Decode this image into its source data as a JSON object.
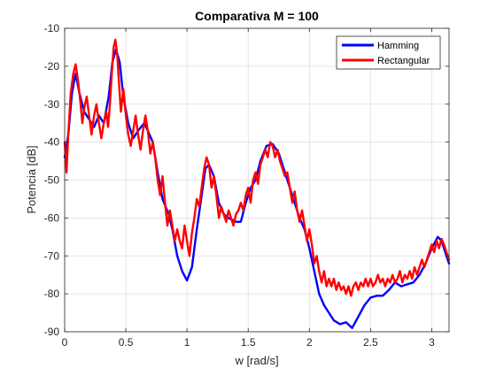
{
  "chart_data": {
    "type": "line",
    "title": "Comparativa M = 100",
    "xlabel": "w [rad/s]",
    "ylabel": "Potencia [dB]",
    "xlim": [
      0,
      3.1416
    ],
    "ylim": [
      -90,
      -10
    ],
    "xticks": [
      0,
      0.5,
      1,
      1.5,
      2,
      2.5,
      3
    ],
    "xtick_labels": [
      "0",
      "0.5",
      "1",
      "1.5",
      "2",
      "2.5",
      "3"
    ],
    "yticks": [
      -90,
      -80,
      -70,
      -60,
      -50,
      -40,
      -30,
      -20,
      -10
    ],
    "ytick_labels": [
      "-90",
      "-80",
      "-70",
      "-60",
      "-50",
      "-40",
      "-30",
      "-20",
      "-10"
    ],
    "grid": true,
    "legend": {
      "placement": "top-right"
    },
    "series": [
      {
        "name": "Hamming",
        "color": "#0000ff",
        "points": [
          [
            0,
            -44
          ],
          [
            0.03,
            -38
          ],
          [
            0.06,
            -27
          ],
          [
            0.09,
            -22
          ],
          [
            0.12,
            -27
          ],
          [
            0.16,
            -32
          ],
          [
            0.2,
            -34
          ],
          [
            0.24,
            -36
          ],
          [
            0.28,
            -33
          ],
          [
            0.32,
            -35
          ],
          [
            0.36,
            -28
          ],
          [
            0.39,
            -19
          ],
          [
            0.42,
            -15.5
          ],
          [
            0.45,
            -19
          ],
          [
            0.48,
            -28
          ],
          [
            0.52,
            -35
          ],
          [
            0.56,
            -39
          ],
          [
            0.6,
            -37
          ],
          [
            0.65,
            -35
          ],
          [
            0.68,
            -37
          ],
          [
            0.72,
            -40
          ],
          [
            0.76,
            -48
          ],
          [
            0.8,
            -55
          ],
          [
            0.85,
            -59
          ],
          [
            0.88,
            -63
          ],
          [
            0.92,
            -70
          ],
          [
            0.96,
            -74
          ],
          [
            1.0,
            -76.5
          ],
          [
            1.04,
            -73
          ],
          [
            1.08,
            -63
          ],
          [
            1.12,
            -54
          ],
          [
            1.15,
            -47
          ],
          [
            1.18,
            -46
          ],
          [
            1.22,
            -49
          ],
          [
            1.26,
            -56
          ],
          [
            1.3,
            -59
          ],
          [
            1.34,
            -60
          ],
          [
            1.4,
            -61
          ],
          [
            1.44,
            -61
          ],
          [
            1.48,
            -56
          ],
          [
            1.52,
            -52
          ],
          [
            1.56,
            -50
          ],
          [
            1.6,
            -45
          ],
          [
            1.65,
            -41
          ],
          [
            1.7,
            -40.5
          ],
          [
            1.75,
            -43
          ],
          [
            1.8,
            -48
          ],
          [
            1.84,
            -52
          ],
          [
            1.88,
            -56
          ],
          [
            1.92,
            -60
          ],
          [
            1.96,
            -63
          ],
          [
            2.0,
            -68
          ],
          [
            2.04,
            -74
          ],
          [
            2.08,
            -80
          ],
          [
            2.12,
            -83
          ],
          [
            2.16,
            -85
          ],
          [
            2.2,
            -87
          ],
          [
            2.25,
            -88
          ],
          [
            2.3,
            -87.5
          ],
          [
            2.35,
            -89
          ],
          [
            2.4,
            -86
          ],
          [
            2.45,
            -83
          ],
          [
            2.5,
            -81
          ],
          [
            2.55,
            -80.5
          ],
          [
            2.6,
            -80.5
          ],
          [
            2.65,
            -79
          ],
          [
            2.7,
            -77
          ],
          [
            2.75,
            -78
          ],
          [
            2.8,
            -77.5
          ],
          [
            2.85,
            -77
          ],
          [
            2.9,
            -75
          ],
          [
            2.95,
            -72
          ],
          [
            3.0,
            -68
          ],
          [
            3.05,
            -65
          ],
          [
            3.08,
            -66
          ],
          [
            3.12,
            -70
          ],
          [
            3.1416,
            -72
          ]
        ]
      },
      {
        "name": "Rectangular",
        "color": "#ff0000",
        "points": [
          [
            0,
            -40
          ],
          [
            0.015,
            -48
          ],
          [
            0.03,
            -38
          ],
          [
            0.05,
            -27
          ],
          [
            0.07,
            -22
          ],
          [
            0.09,
            -19.5
          ],
          [
            0.11,
            -24
          ],
          [
            0.13,
            -30
          ],
          [
            0.145,
            -35
          ],
          [
            0.16,
            -31
          ],
          [
            0.18,
            -28
          ],
          [
            0.2,
            -33
          ],
          [
            0.22,
            -38
          ],
          [
            0.24,
            -33
          ],
          [
            0.26,
            -30
          ],
          [
            0.28,
            -35
          ],
          [
            0.3,
            -39
          ],
          [
            0.32,
            -35
          ],
          [
            0.34,
            -32
          ],
          [
            0.355,
            -36
          ],
          [
            0.37,
            -30
          ],
          [
            0.385,
            -22
          ],
          [
            0.4,
            -15
          ],
          [
            0.415,
            -13
          ],
          [
            0.43,
            -17
          ],
          [
            0.445,
            -25
          ],
          [
            0.46,
            -32
          ],
          [
            0.48,
            -26
          ],
          [
            0.5,
            -33
          ],
          [
            0.52,
            -38
          ],
          [
            0.54,
            -41
          ],
          [
            0.56,
            -37
          ],
          [
            0.58,
            -33
          ],
          [
            0.6,
            -38
          ],
          [
            0.62,
            -42
          ],
          [
            0.64,
            -37
          ],
          [
            0.66,
            -33
          ],
          [
            0.68,
            -37
          ],
          [
            0.7,
            -43
          ],
          [
            0.72,
            -40
          ],
          [
            0.74,
            -44
          ],
          [
            0.76,
            -50
          ],
          [
            0.78,
            -54
          ],
          [
            0.8,
            -49
          ],
          [
            0.82,
            -56
          ],
          [
            0.84,
            -62
          ],
          [
            0.86,
            -58
          ],
          [
            0.88,
            -62
          ],
          [
            0.9,
            -66
          ],
          [
            0.92,
            -63
          ],
          [
            0.94,
            -66
          ],
          [
            0.96,
            -68
          ],
          [
            0.98,
            -62
          ],
          [
            1.0,
            -66
          ],
          [
            1.02,
            -70
          ],
          [
            1.04,
            -64
          ],
          [
            1.06,
            -60
          ],
          [
            1.08,
            -55
          ],
          [
            1.1,
            -57
          ],
          [
            1.12,
            -52
          ],
          [
            1.14,
            -47
          ],
          [
            1.16,
            -44
          ],
          [
            1.18,
            -46
          ],
          [
            1.2,
            -52
          ],
          [
            1.22,
            -49
          ],
          [
            1.24,
            -54
          ],
          [
            1.26,
            -60
          ],
          [
            1.28,
            -57
          ],
          [
            1.3,
            -59
          ],
          [
            1.32,
            -61
          ],
          [
            1.34,
            -58
          ],
          [
            1.36,
            -60
          ],
          [
            1.38,
            -62
          ],
          [
            1.4,
            -59
          ],
          [
            1.42,
            -58
          ],
          [
            1.44,
            -56
          ],
          [
            1.46,
            -58
          ],
          [
            1.48,
            -54
          ],
          [
            1.5,
            -52
          ],
          [
            1.52,
            -56
          ],
          [
            1.54,
            -50
          ],
          [
            1.56,
            -48
          ],
          [
            1.58,
            -51
          ],
          [
            1.6,
            -46
          ],
          [
            1.62,
            -44
          ],
          [
            1.64,
            -42
          ],
          [
            1.66,
            -44
          ],
          [
            1.68,
            -40
          ],
          [
            1.7,
            -41
          ],
          [
            1.72,
            -44
          ],
          [
            1.74,
            -42
          ],
          [
            1.76,
            -45
          ],
          [
            1.78,
            -47
          ],
          [
            1.8,
            -49
          ],
          [
            1.82,
            -48
          ],
          [
            1.84,
            -52
          ],
          [
            1.86,
            -56
          ],
          [
            1.88,
            -53
          ],
          [
            1.9,
            -58
          ],
          [
            1.92,
            -61
          ],
          [
            1.94,
            -58
          ],
          [
            1.96,
            -62
          ],
          [
            1.98,
            -66
          ],
          [
            2.0,
            -63
          ],
          [
            2.02,
            -67
          ],
          [
            2.04,
            -72
          ],
          [
            2.06,
            -70
          ],
          [
            2.08,
            -74
          ],
          [
            2.1,
            -77
          ],
          [
            2.12,
            -74
          ],
          [
            2.14,
            -78
          ],
          [
            2.16,
            -76
          ],
          [
            2.18,
            -78
          ],
          [
            2.2,
            -76
          ],
          [
            2.22,
            -79
          ],
          [
            2.24,
            -77
          ],
          [
            2.26,
            -79
          ],
          [
            2.28,
            -78
          ],
          [
            2.3,
            -80
          ],
          [
            2.32,
            -78
          ],
          [
            2.34,
            -80.5
          ],
          [
            2.36,
            -78
          ],
          [
            2.38,
            -77
          ],
          [
            2.4,
            -79
          ],
          [
            2.42,
            -77
          ],
          [
            2.44,
            -78
          ],
          [
            2.46,
            -76
          ],
          [
            2.48,
            -78
          ],
          [
            2.5,
            -76
          ],
          [
            2.52,
            -78
          ],
          [
            2.54,
            -77
          ],
          [
            2.56,
            -75
          ],
          [
            2.58,
            -77
          ],
          [
            2.6,
            -76
          ],
          [
            2.62,
            -78
          ],
          [
            2.64,
            -76
          ],
          [
            2.66,
            -77
          ],
          [
            2.68,
            -75
          ],
          [
            2.7,
            -77
          ],
          [
            2.72,
            -76
          ],
          [
            2.74,
            -74
          ],
          [
            2.76,
            -77
          ],
          [
            2.78,
            -75
          ],
          [
            2.8,
            -76
          ],
          [
            2.82,
            -74
          ],
          [
            2.84,
            -76
          ],
          [
            2.86,
            -73
          ],
          [
            2.88,
            -75
          ],
          [
            2.9,
            -73
          ],
          [
            2.92,
            -71
          ],
          [
            2.94,
            -73
          ],
          [
            2.96,
            -71
          ],
          [
            2.98,
            -69
          ],
          [
            3.0,
            -67
          ],
          [
            3.02,
            -69
          ],
          [
            3.04,
            -66
          ],
          [
            3.06,
            -68
          ],
          [
            3.08,
            -65.5
          ],
          [
            3.1,
            -67
          ],
          [
            3.12,
            -69
          ],
          [
            3.1416,
            -71
          ]
        ]
      }
    ]
  }
}
